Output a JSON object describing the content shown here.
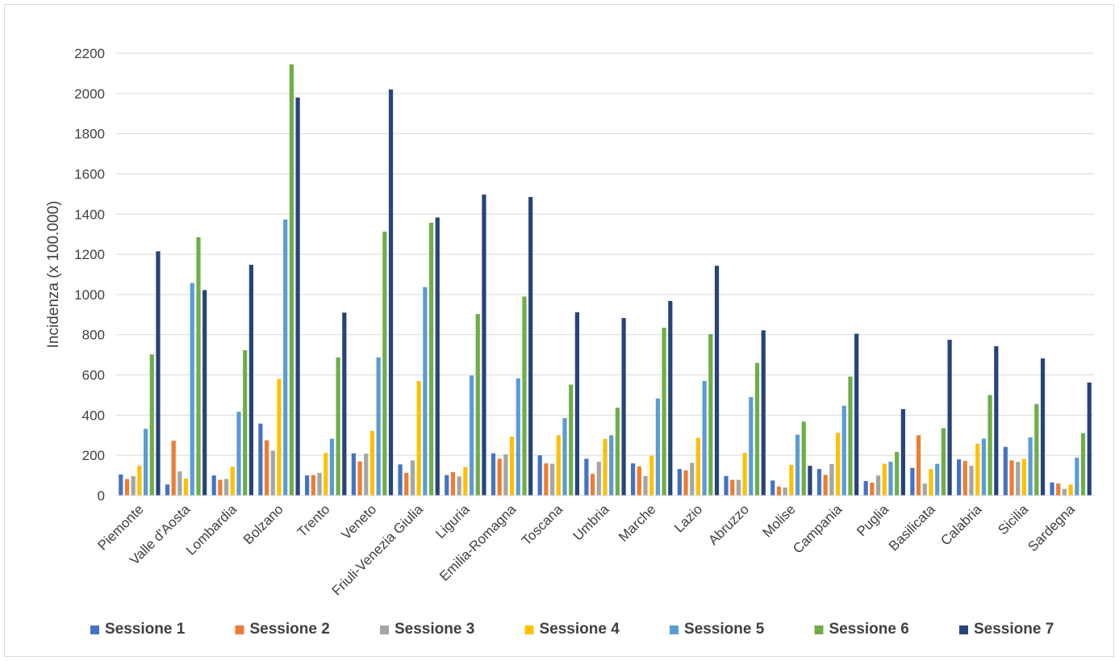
{
  "chart_data": {
    "type": "bar",
    "title": "",
    "xlabel": "",
    "ylabel": "Incidenza (x 100.000)",
    "ylim": [
      0,
      2200
    ],
    "yticks": [
      0,
      200,
      400,
      600,
      800,
      1000,
      1200,
      1400,
      1600,
      1800,
      2000,
      2200
    ],
    "grid": "horizontal",
    "legend": "bottom",
    "categories": [
      "Piemonte",
      "Valle d'Aosta",
      "Lombardia",
      "Bolzano",
      "Trento",
      "Veneto",
      "Friuli-Venezia Giulia",
      "Liguria",
      "Emilia-Romagna",
      "Toscana",
      "Umbria",
      "Marche",
      "Lazio",
      "Abruzzo",
      "Molise",
      "Campania",
      "Puglia",
      "Basilicata",
      "Calabria",
      "Sicilia",
      "Sardegna"
    ],
    "series": [
      {
        "name": "Sessione 1",
        "color": "#4472c4",
        "values": [
          105,
          55,
          100,
          358,
          100,
          210,
          155,
          102,
          210,
          200,
          183,
          160,
          132,
          97,
          75,
          132,
          72,
          138,
          180,
          242,
          65
        ]
      },
      {
        "name": "Sessione 2",
        "color": "#ed7d31",
        "values": [
          82,
          273,
          78,
          275,
          102,
          170,
          113,
          117,
          183,
          160,
          108,
          145,
          125,
          78,
          45,
          103,
          64,
          300,
          172,
          175,
          60
        ]
      },
      {
        "name": "Sessione 3",
        "color": "#a5a5a5",
        "values": [
          97,
          120,
          82,
          223,
          113,
          208,
          175,
          95,
          205,
          158,
          168,
          97,
          163,
          78,
          40,
          157,
          100,
          60,
          148,
          167,
          33
        ]
      },
      {
        "name": "Sessione 4",
        "color": "#ffc000",
        "values": [
          148,
          85,
          143,
          580,
          212,
          322,
          570,
          142,
          293,
          300,
          282,
          198,
          287,
          212,
          153,
          312,
          158,
          132,
          258,
          182,
          55
        ]
      },
      {
        "name": "Sessione 5",
        "color": "#5b9bd5",
        "values": [
          332,
          1057,
          417,
          1373,
          283,
          687,
          1037,
          597,
          583,
          385,
          300,
          483,
          570,
          490,
          303,
          447,
          168,
          158,
          283,
          290,
          188
        ]
      },
      {
        "name": "Sessione 6",
        "color": "#70ad47",
        "values": [
          702,
          1285,
          723,
          2145,
          687,
          1313,
          1357,
          903,
          990,
          552,
          437,
          835,
          803,
          660,
          368,
          592,
          217,
          335,
          500,
          455,
          310
        ]
      },
      {
        "name": "Sessione 7",
        "color": "#264478",
        "values": [
          1215,
          1022,
          1148,
          1980,
          910,
          2020,
          1383,
          1497,
          1485,
          912,
          883,
          968,
          1143,
          822,
          148,
          805,
          430,
          775,
          743,
          682,
          562
        ]
      }
    ]
  }
}
